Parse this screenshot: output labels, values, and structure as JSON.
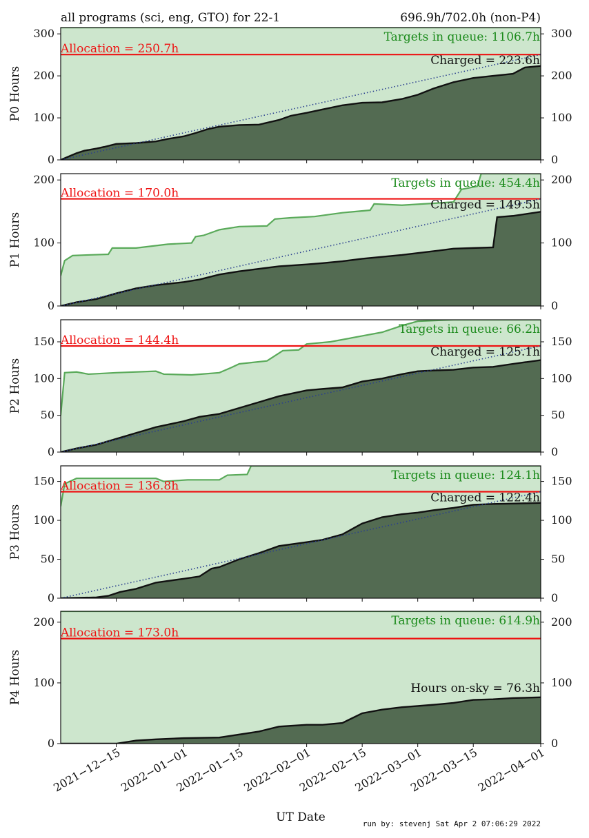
{
  "header": {
    "left": "all programs (sci, eng, GTO) for 22-1",
    "right": "696.9h/702.0h (non-P4)"
  },
  "footer": {
    "xlabel": "UT Date",
    "run_by": "run by: stevenj Sat Apr 2 07:06:29 2022"
  },
  "colors": {
    "queue_fill": "#cde6cd",
    "queue_line": "#5aaa5a",
    "charged_fill": "#536b52",
    "charged_line": "#111111",
    "allocation_line": "#ee1111",
    "target_line": "#2a3f8f",
    "queue_label": "#1a8a1a"
  },
  "chart_data": [
    {
      "type": "area",
      "ylabel": "P0 Hours",
      "ylim": [
        0,
        315
      ],
      "yticks": [
        0,
        100,
        200,
        300
      ],
      "x_range": [
        "2021-12-01",
        "2022-04-01"
      ],
      "x_ticks": [
        "2021-12-15",
        "2022-01-01",
        "2022-01-15",
        "2022-02-01",
        "2022-02-15",
        "2022-03-01",
        "2022-03-15",
        "2022-04-01"
      ],
      "allocation": 250.7,
      "allocation_label": "Allocation = 250.7h",
      "queue_label": "Targets in queue: 1106.7h",
      "charged_label": "Charged = 223.6h",
      "target_line": [
        [
          "2021-12-01",
          0
        ],
        [
          "2022-04-01",
          250.7
        ]
      ],
      "series": [
        {
          "name": "Charged",
          "points": [
            [
              "2021-12-01",
              0
            ],
            [
              "2021-12-03",
              8
            ],
            [
              "2021-12-05",
              16
            ],
            [
              "2021-12-07",
              22
            ],
            [
              "2021-12-10",
              27
            ],
            [
              "2021-12-12",
              31
            ],
            [
              "2021-12-15",
              38
            ],
            [
              "2021-12-20",
              40
            ],
            [
              "2021-12-25",
              44
            ],
            [
              "2021-12-28",
              50
            ],
            [
              "2022-01-01",
              56
            ],
            [
              "2022-01-04",
              64
            ],
            [
              "2022-01-07",
              73
            ],
            [
              "2022-01-10",
              79
            ],
            [
              "2022-01-15",
              83
            ],
            [
              "2022-01-20",
              84
            ],
            [
              "2022-01-25",
              95
            ],
            [
              "2022-01-28",
              105
            ],
            [
              "2022-02-01",
              112
            ],
            [
              "2022-02-05",
              120
            ],
            [
              "2022-02-10",
              130
            ],
            [
              "2022-02-15",
              136
            ],
            [
              "2022-02-20",
              137
            ],
            [
              "2022-02-25",
              145
            ],
            [
              "2022-03-01",
              155
            ],
            [
              "2022-03-05",
              170
            ],
            [
              "2022-03-10",
              185
            ],
            [
              "2022-03-15",
              195
            ],
            [
              "2022-03-20",
              200
            ],
            [
              "2022-03-25",
              205
            ],
            [
              "2022-03-28",
              220
            ],
            [
              "2022-04-01",
              223.6
            ]
          ]
        },
        {
          "name": "Targets in queue",
          "points": [
            [
              "2021-12-01",
              320
            ],
            [
              "2022-04-01",
              320
            ]
          ]
        }
      ]
    },
    {
      "type": "area",
      "ylabel": "P1 Hours",
      "ylim": [
        0,
        210
      ],
      "yticks": [
        0,
        100,
        200
      ],
      "x_range": [
        "2021-12-01",
        "2022-04-01"
      ],
      "allocation": 170.0,
      "allocation_label": "Allocation = 170.0h",
      "queue_label": "Targets in queue: 454.4h",
      "charged_label": "Charged = 149.5h",
      "target_line": [
        [
          "2021-12-01",
          0
        ],
        [
          "2022-04-01",
          170.0
        ]
      ],
      "series": [
        {
          "name": "Charged",
          "points": [
            [
              "2021-12-01",
              0
            ],
            [
              "2021-12-05",
              6
            ],
            [
              "2021-12-10",
              11
            ],
            [
              "2021-12-15",
              20
            ],
            [
              "2021-12-20",
              28
            ],
            [
              "2021-12-25",
              33
            ],
            [
              "2022-01-01",
              38
            ],
            [
              "2022-01-05",
              42
            ],
            [
              "2022-01-10",
              50
            ],
            [
              "2022-01-15",
              55
            ],
            [
              "2022-01-20",
              59
            ],
            [
              "2022-01-25",
              63
            ],
            [
              "2022-02-01",
              66
            ],
            [
              "2022-02-05",
              68
            ],
            [
              "2022-02-10",
              71
            ],
            [
              "2022-02-15",
              75
            ],
            [
              "2022-02-20",
              78
            ],
            [
              "2022-02-25",
              81
            ],
            [
              "2022-03-01",
              84
            ],
            [
              "2022-03-05",
              87
            ],
            [
              "2022-03-10",
              91
            ],
            [
              "2022-03-15",
              92
            ],
            [
              "2022-03-20",
              93
            ],
            [
              "2022-03-21",
              141
            ],
            [
              "2022-03-25",
              143
            ],
            [
              "2022-04-01",
              149.5
            ]
          ]
        },
        {
          "name": "Targets in queue",
          "points": [
            [
              "2021-12-01",
              48
            ],
            [
              "2021-12-02",
              72
            ],
            [
              "2021-12-04",
              80
            ],
            [
              "2021-12-08",
              81
            ],
            [
              "2021-12-13",
              82
            ],
            [
              "2021-12-14",
              92
            ],
            [
              "2021-12-20",
              92
            ],
            [
              "2021-12-28",
              98
            ],
            [
              "2022-01-03",
              100
            ],
            [
              "2022-01-04",
              110
            ],
            [
              "2022-01-06",
              112
            ],
            [
              "2022-01-10",
              121
            ],
            [
              "2022-01-15",
              126
            ],
            [
              "2022-01-22",
              127
            ],
            [
              "2022-01-24",
              138
            ],
            [
              "2022-01-28",
              140
            ],
            [
              "2022-02-03",
              142
            ],
            [
              "2022-02-10",
              148
            ],
            [
              "2022-02-17",
              152
            ],
            [
              "2022-02-18",
              162
            ],
            [
              "2022-02-25",
              160
            ],
            [
              "2022-03-05",
              163
            ],
            [
              "2022-03-10",
              165
            ],
            [
              "2022-03-12",
              185
            ],
            [
              "2022-03-16",
              190
            ],
            [
              "2022-03-17",
              215
            ],
            [
              "2022-04-01",
              215
            ]
          ]
        }
      ]
    },
    {
      "type": "area",
      "ylabel": "P2 Hours",
      "ylim": [
        0,
        180
      ],
      "yticks": [
        0,
        50,
        100,
        150
      ],
      "x_range": [
        "2021-12-01",
        "2022-04-01"
      ],
      "allocation": 144.4,
      "allocation_label": "Allocation = 144.4h",
      "queue_label": "Targets in queue: 66.2h",
      "charged_label": "Charged = 125.1h",
      "target_line": [
        [
          "2021-12-01",
          0
        ],
        [
          "2022-04-01",
          144.4
        ]
      ],
      "series": [
        {
          "name": "Charged",
          "points": [
            [
              "2021-12-01",
              0
            ],
            [
              "2021-12-05",
              5
            ],
            [
              "2021-12-10",
              10
            ],
            [
              "2021-12-15",
              18
            ],
            [
              "2021-12-20",
              26
            ],
            [
              "2021-12-25",
              34
            ],
            [
              "2022-01-01",
              42
            ],
            [
              "2022-01-05",
              48
            ],
            [
              "2022-01-10",
              52
            ],
            [
              "2022-01-15",
              60
            ],
            [
              "2022-01-20",
              68
            ],
            [
              "2022-01-25",
              76
            ],
            [
              "2022-02-01",
              84
            ],
            [
              "2022-02-05",
              86
            ],
            [
              "2022-02-10",
              88
            ],
            [
              "2022-02-15",
              96
            ],
            [
              "2022-02-20",
              100
            ],
            [
              "2022-02-25",
              106
            ],
            [
              "2022-03-01",
              110
            ],
            [
              "2022-03-05",
              111
            ],
            [
              "2022-03-10",
              112
            ],
            [
              "2022-03-15",
              115
            ],
            [
              "2022-03-20",
              116
            ],
            [
              "2022-03-25",
              120
            ],
            [
              "2022-04-01",
              125.1
            ]
          ]
        },
        {
          "name": "Targets in queue",
          "points": [
            [
              "2021-12-01",
              50
            ],
            [
              "2021-12-02",
              108
            ],
            [
              "2021-12-05",
              109
            ],
            [
              "2021-12-08",
              106
            ],
            [
              "2021-12-15",
              108
            ],
            [
              "2021-12-25",
              110
            ],
            [
              "2021-12-27",
              106
            ],
            [
              "2022-01-03",
              105
            ],
            [
              "2022-01-10",
              108
            ],
            [
              "2022-01-13",
              115
            ],
            [
              "2022-01-15",
              120
            ],
            [
              "2022-01-22",
              124
            ],
            [
              "2022-01-26",
              138
            ],
            [
              "2022-01-30",
              139
            ],
            [
              "2022-02-01",
              147
            ],
            [
              "2022-02-07",
              150
            ],
            [
              "2022-02-15",
              158
            ],
            [
              "2022-02-20",
              163
            ],
            [
              "2022-02-25",
              172
            ],
            [
              "2022-03-01",
              178
            ],
            [
              "2022-03-10",
              182
            ],
            [
              "2022-04-01",
              182
            ]
          ]
        }
      ]
    },
    {
      "type": "area",
      "ylabel": "P3 Hours",
      "ylim": [
        0,
        170
      ],
      "yticks": [
        0,
        50,
        100,
        150
      ],
      "x_range": [
        "2021-12-01",
        "2022-04-01"
      ],
      "allocation": 136.8,
      "allocation_label": "Allocation = 136.8h",
      "queue_label": "Targets in queue: 124.1h",
      "charged_label": "Charged = 122.4h",
      "target_line": [
        [
          "2021-12-01",
          0
        ],
        [
          "2022-04-01",
          136.8
        ]
      ],
      "series": [
        {
          "name": "Charged",
          "points": [
            [
              "2021-12-01",
              0
            ],
            [
              "2021-12-10",
              1
            ],
            [
              "2021-12-13",
              3
            ],
            [
              "2021-12-16",
              8
            ],
            [
              "2021-12-20",
              12
            ],
            [
              "2021-12-25",
              20
            ],
            [
              "2022-01-01",
              25
            ],
            [
              "2022-01-05",
              28
            ],
            [
              "2022-01-08",
              38
            ],
            [
              "2022-01-10",
              40
            ],
            [
              "2022-01-15",
              50
            ],
            [
              "2022-01-20",
              58
            ],
            [
              "2022-01-25",
              67
            ],
            [
              "2022-02-01",
              72
            ],
            [
              "2022-02-05",
              75
            ],
            [
              "2022-02-10",
              82
            ],
            [
              "2022-02-15",
              96
            ],
            [
              "2022-02-20",
              104
            ],
            [
              "2022-02-25",
              108
            ],
            [
              "2022-03-01",
              110
            ],
            [
              "2022-03-05",
              113
            ],
            [
              "2022-03-10",
              116
            ],
            [
              "2022-03-15",
              120
            ],
            [
              "2022-03-20",
              121
            ],
            [
              "2022-04-01",
              122.4
            ]
          ]
        },
        {
          "name": "Targets in queue",
          "points": [
            [
              "2021-12-01",
              118
            ],
            [
              "2021-12-02",
              147
            ],
            [
              "2021-12-05",
              154
            ],
            [
              "2021-12-15",
              154
            ],
            [
              "2021-12-25",
              154
            ],
            [
              "2021-12-27",
              150
            ],
            [
              "2022-01-02",
              152
            ],
            [
              "2022-01-10",
              152
            ],
            [
              "2022-01-12",
              158
            ],
            [
              "2022-01-17",
              159
            ],
            [
              "2022-01-18",
              175
            ],
            [
              "2022-04-01",
              175
            ]
          ]
        }
      ]
    },
    {
      "type": "area",
      "ylabel": "P4 Hours",
      "ylim": [
        0,
        218
      ],
      "yticks": [
        0,
        100,
        200
      ],
      "x_range": [
        "2021-12-01",
        "2022-04-01"
      ],
      "allocation": 173.0,
      "allocation_label": "Allocation = 173.0h",
      "queue_label": "Targets in queue: 614.9h",
      "charged_label": "Hours on-sky = 76.3h",
      "series": [
        {
          "name": "Hours on-sky",
          "points": [
            [
              "2021-12-01",
              0
            ],
            [
              "2021-12-15",
              0
            ],
            [
              "2021-12-20",
              5
            ],
            [
              "2021-12-25",
              7
            ],
            [
              "2022-01-01",
              9
            ],
            [
              "2022-01-10",
              10
            ],
            [
              "2022-01-15",
              15
            ],
            [
              "2022-01-20",
              20
            ],
            [
              "2022-01-25",
              28
            ],
            [
              "2022-02-01",
              31
            ],
            [
              "2022-02-05",
              31
            ],
            [
              "2022-02-10",
              34
            ],
            [
              "2022-02-15",
              50
            ],
            [
              "2022-02-20",
              56
            ],
            [
              "2022-02-25",
              60
            ],
            [
              "2022-03-01",
              62
            ],
            [
              "2022-03-05",
              64
            ],
            [
              "2022-03-10",
              67
            ],
            [
              "2022-03-15",
              72
            ],
            [
              "2022-03-20",
              73
            ],
            [
              "2022-03-25",
              75
            ],
            [
              "2022-04-01",
              76.3
            ]
          ]
        },
        {
          "name": "Targets in queue",
          "points": [
            [
              "2021-12-01",
              230
            ],
            [
              "2022-04-01",
              230
            ]
          ]
        }
      ]
    }
  ]
}
